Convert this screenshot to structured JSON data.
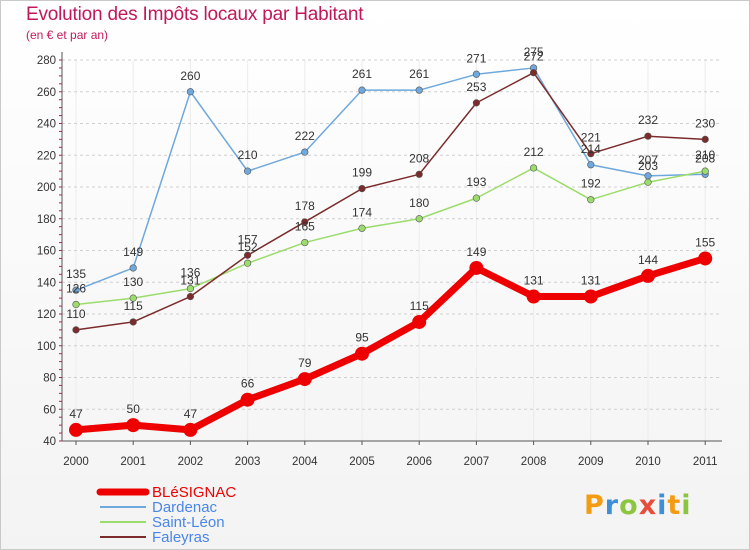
{
  "chart_data": {
    "type": "line",
    "title": "Evolution des Impôts locaux par Habitant",
    "subtitle": "(en € et par an)",
    "xlabel": "",
    "ylabel": "",
    "categories": [
      "2000",
      "2001",
      "2002",
      "2003",
      "2004",
      "2005",
      "2006",
      "2007",
      "2008",
      "2009",
      "2010",
      "2011"
    ],
    "ylim": [
      40,
      280
    ],
    "yticks": [
      40,
      60,
      80,
      100,
      120,
      140,
      160,
      180,
      200,
      220,
      240,
      260,
      280
    ],
    "grid": "horizontal dashed",
    "series": [
      {
        "name": "BLéSIGNAC",
        "color": "#ee0000",
        "legend_color": "#ee0000",
        "values": [
          47,
          50,
          47,
          66,
          79,
          95,
          115,
          149,
          131,
          131,
          144,
          155
        ]
      },
      {
        "name": "Dardenac",
        "color": "#6fa8dc",
        "legend_color": "#4a86e8",
        "values": [
          135,
          149,
          260,
          210,
          222,
          261,
          261,
          271,
          275,
          214,
          207,
          208
        ]
      },
      {
        "name": "Saint-Léon",
        "color": "#9cdc6c",
        "legend_color": "#4a86e8",
        "values": [
          126,
          130,
          136,
          152,
          165,
          174,
          180,
          193,
          212,
          192,
          203,
          210
        ]
      },
      {
        "name": "Faleyras",
        "color": "#7b2b2b",
        "legend_color": "#4a86e8",
        "values": [
          110,
          115,
          131,
          157,
          178,
          199,
          208,
          253,
          272,
          221,
          232,
          230
        ]
      }
    ]
  },
  "logo_text": "Proxiti"
}
